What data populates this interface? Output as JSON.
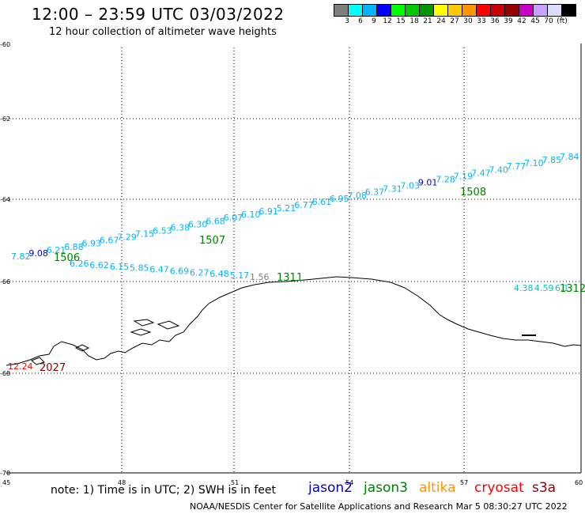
{
  "header": {
    "title": "12:00 – 23:59 UTC 03/03/2022",
    "subtitle": "12 hour collection of altimeter wave heights"
  },
  "colorbar": {
    "colors": [
      "#7f7f7f",
      "#00ffff",
      "#00b4ff",
      "#0000ff",
      "#00ff00",
      "#00c800",
      "#009600",
      "#ffff00",
      "#ffc800",
      "#ff9600",
      "#ff0000",
      "#c80000",
      "#960000",
      "#c800c8",
      "#c8a0ff",
      "#dcdcff",
      "#000000"
    ],
    "labels": [
      "3",
      "6",
      "9",
      "12",
      "15",
      "18",
      "21",
      "24",
      "27",
      "30",
      "33",
      "36",
      "39",
      "42",
      "45",
      "70",
      "(ft)"
    ]
  },
  "axes": {
    "lat_labels": [
      "-60",
      "-62",
      "-64",
      "-66",
      "-68",
      "-70"
    ],
    "lon_labels": [
      "45",
      "48",
      "51",
      "54",
      "57",
      "60"
    ]
  },
  "passes": [
    {
      "id": "1507",
      "color": "#008000"
    },
    {
      "id": "1508",
      "color": "#008000"
    },
    {
      "id": "1506",
      "color": "#008000"
    },
    {
      "id": "1311",
      "color": "#008000"
    },
    {
      "id": "1312",
      "color": "#008000"
    },
    {
      "id": "2027",
      "color": "#8b0000"
    }
  ],
  "upper_track": [
    "7.82",
    "9.08",
    "6.21",
    "6.88",
    "6.93",
    "6.67",
    "7.29",
    "7.15",
    "6.53",
    "6.38",
    "6.30",
    "6.68",
    "6.07",
    "6.10",
    "6.91",
    "5.21",
    "6.77",
    "6.61",
    "6.95",
    "7.08",
    "6.37",
    "7.31",
    "7.03",
    "9.01",
    "7.28",
    "7.19",
    "7.47",
    "7.40",
    "7.77",
    "7.10",
    "7.85",
    "7.84"
  ],
  "lower_track": [
    "6.26",
    "6.62",
    "6.15",
    "5.85",
    "6.47",
    "6.69",
    "6.27",
    "6.48",
    "5.17",
    "1.56"
  ],
  "right_track": [
    "4.38",
    "4.59",
    "6.1"
  ],
  "red_value": "12.24",
  "footer": {
    "note": "note: 1) Time is in UTC; 2) SWH is in feet",
    "legend": [
      {
        "label": "jason2",
        "color": "#0000cd"
      },
      {
        "label": "jason3",
        "color": "#008000"
      },
      {
        "label": "altika",
        "color": "#ff9600"
      },
      {
        "label": "cryosat",
        "color": "#ff0000"
      },
      {
        "label": "s3a",
        "color": "#8b0000"
      }
    ],
    "credit": "NOAA/NESDIS Center for Satellite Applications and Research    Mar  5 08:30:27 UTC 2022"
  }
}
